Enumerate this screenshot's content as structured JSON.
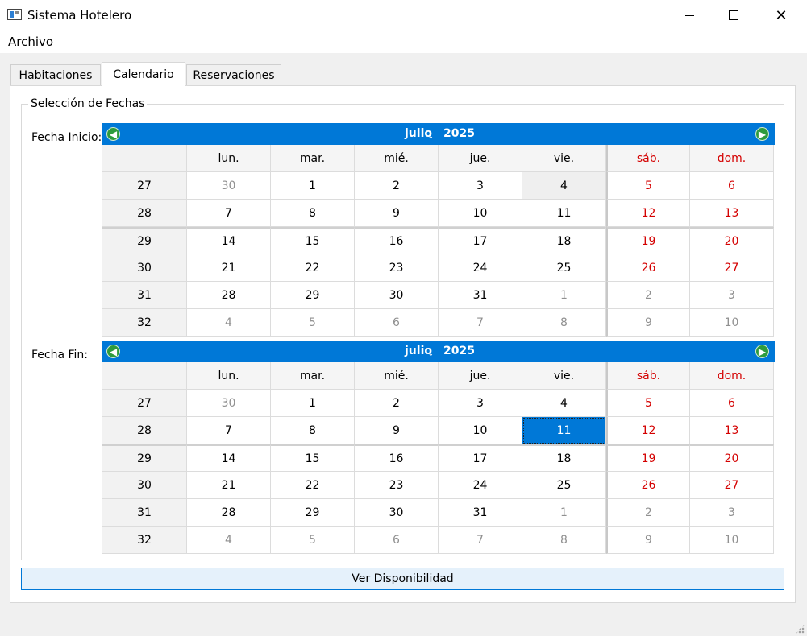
{
  "window": {
    "title": "Sistema Hotelero",
    "minimize": "",
    "close": "✕"
  },
  "menu": {
    "items": [
      "Archivo"
    ]
  },
  "tabs": [
    {
      "label": "Habitaciones",
      "active": false
    },
    {
      "label": "Calendario",
      "active": true
    },
    {
      "label": "Reservaciones",
      "active": false
    }
  ],
  "group": {
    "title": "Selección de Fechas"
  },
  "calendars": [
    {
      "label": "Fecha Inicio:",
      "month": "julio",
      "year": "2025",
      "day_headers": [
        "lun.",
        "mar.",
        "mié.",
        "jue.",
        "vie.",
        "sáb.",
        "dom."
      ],
      "weeks": [
        {
          "week": "27",
          "days": [
            "30",
            "1",
            "2",
            "3",
            "4",
            "5",
            "6"
          ]
        },
        {
          "week": "28",
          "days": [
            "7",
            "8",
            "9",
            "10",
            "11",
            "12",
            "13"
          ]
        },
        {
          "week": "29",
          "days": [
            "14",
            "15",
            "16",
            "17",
            "18",
            "19",
            "20"
          ]
        },
        {
          "week": "30",
          "days": [
            "21",
            "22",
            "23",
            "24",
            "25",
            "26",
            "27"
          ]
        },
        {
          "week": "31",
          "days": [
            "28",
            "29",
            "30",
            "31",
            "1",
            "2",
            "3"
          ]
        },
        {
          "week": "32",
          "days": [
            "4",
            "5",
            "6",
            "7",
            "8",
            "9",
            "10"
          ]
        }
      ],
      "highlighted_day": "4",
      "selected_day": null
    },
    {
      "label": "Fecha Fin:",
      "month": "julio",
      "year": "2025",
      "day_headers": [
        "lun.",
        "mar.",
        "mié.",
        "jue.",
        "vie.",
        "sáb.",
        "dom."
      ],
      "weeks": [
        {
          "week": "27",
          "days": [
            "30",
            "1",
            "2",
            "3",
            "4",
            "5",
            "6"
          ]
        },
        {
          "week": "28",
          "days": [
            "7",
            "8",
            "9",
            "10",
            "11",
            "12",
            "13"
          ]
        },
        {
          "week": "29",
          "days": [
            "14",
            "15",
            "16",
            "17",
            "18",
            "19",
            "20"
          ]
        },
        {
          "week": "30",
          "days": [
            "21",
            "22",
            "23",
            "24",
            "25",
            "26",
            "27"
          ]
        },
        {
          "week": "31",
          "days": [
            "28",
            "29",
            "30",
            "31",
            "1",
            "2",
            "3"
          ]
        },
        {
          "week": "32",
          "days": [
            "4",
            "5",
            "6",
            "7",
            "8",
            "9",
            "10"
          ]
        }
      ],
      "highlighted_day": null,
      "selected_day": "11"
    }
  ],
  "button": {
    "label": "Ver Disponibilidad"
  },
  "colors": {
    "accent": "#0078d7",
    "weekend": "#d40000",
    "nav_arrow": "#2e9b3d",
    "button_bg": "#e5f1fb"
  },
  "icons": {
    "prev": "arrow-left-icon",
    "next": "arrow-right-icon",
    "app": "window-app-icon"
  }
}
